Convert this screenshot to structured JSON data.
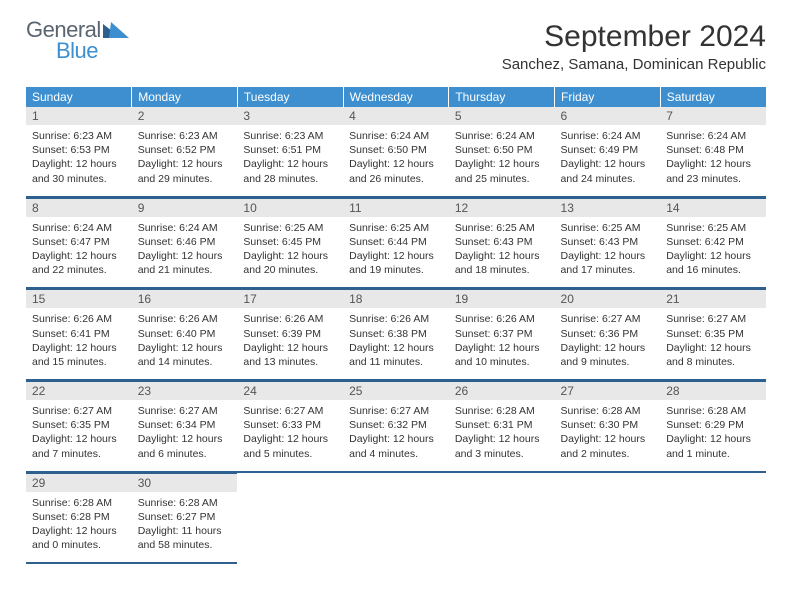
{
  "brand": {
    "general": "General",
    "blue": "Blue"
  },
  "title": "September 2024",
  "location": "Sanchez, Samana, Dominican Republic",
  "colors": {
    "header_bg": "#3d8fcf",
    "row_divider": "#2d5f8f",
    "daynum_bg": "#e8e8e8",
    "text": "#333333",
    "logo_gray": "#5a6570",
    "logo_blue": "#3d8fcf"
  },
  "weekdays": [
    "Sunday",
    "Monday",
    "Tuesday",
    "Wednesday",
    "Thursday",
    "Friday",
    "Saturday"
  ],
  "days": [
    {
      "n": 1,
      "sr": "6:23 AM",
      "ss": "6:53 PM",
      "dl": "12 hours and 30 minutes."
    },
    {
      "n": 2,
      "sr": "6:23 AM",
      "ss": "6:52 PM",
      "dl": "12 hours and 29 minutes."
    },
    {
      "n": 3,
      "sr": "6:23 AM",
      "ss": "6:51 PM",
      "dl": "12 hours and 28 minutes."
    },
    {
      "n": 4,
      "sr": "6:24 AM",
      "ss": "6:50 PM",
      "dl": "12 hours and 26 minutes."
    },
    {
      "n": 5,
      "sr": "6:24 AM",
      "ss": "6:50 PM",
      "dl": "12 hours and 25 minutes."
    },
    {
      "n": 6,
      "sr": "6:24 AM",
      "ss": "6:49 PM",
      "dl": "12 hours and 24 minutes."
    },
    {
      "n": 7,
      "sr": "6:24 AM",
      "ss": "6:48 PM",
      "dl": "12 hours and 23 minutes."
    },
    {
      "n": 8,
      "sr": "6:24 AM",
      "ss": "6:47 PM",
      "dl": "12 hours and 22 minutes."
    },
    {
      "n": 9,
      "sr": "6:24 AM",
      "ss": "6:46 PM",
      "dl": "12 hours and 21 minutes."
    },
    {
      "n": 10,
      "sr": "6:25 AM",
      "ss": "6:45 PM",
      "dl": "12 hours and 20 minutes."
    },
    {
      "n": 11,
      "sr": "6:25 AM",
      "ss": "6:44 PM",
      "dl": "12 hours and 19 minutes."
    },
    {
      "n": 12,
      "sr": "6:25 AM",
      "ss": "6:43 PM",
      "dl": "12 hours and 18 minutes."
    },
    {
      "n": 13,
      "sr": "6:25 AM",
      "ss": "6:43 PM",
      "dl": "12 hours and 17 minutes."
    },
    {
      "n": 14,
      "sr": "6:25 AM",
      "ss": "6:42 PM",
      "dl": "12 hours and 16 minutes."
    },
    {
      "n": 15,
      "sr": "6:26 AM",
      "ss": "6:41 PM",
      "dl": "12 hours and 15 minutes."
    },
    {
      "n": 16,
      "sr": "6:26 AM",
      "ss": "6:40 PM",
      "dl": "12 hours and 14 minutes."
    },
    {
      "n": 17,
      "sr": "6:26 AM",
      "ss": "6:39 PM",
      "dl": "12 hours and 13 minutes."
    },
    {
      "n": 18,
      "sr": "6:26 AM",
      "ss": "6:38 PM",
      "dl": "12 hours and 11 minutes."
    },
    {
      "n": 19,
      "sr": "6:26 AM",
      "ss": "6:37 PM",
      "dl": "12 hours and 10 minutes."
    },
    {
      "n": 20,
      "sr": "6:27 AM",
      "ss": "6:36 PM",
      "dl": "12 hours and 9 minutes."
    },
    {
      "n": 21,
      "sr": "6:27 AM",
      "ss": "6:35 PM",
      "dl": "12 hours and 8 minutes."
    },
    {
      "n": 22,
      "sr": "6:27 AM",
      "ss": "6:35 PM",
      "dl": "12 hours and 7 minutes."
    },
    {
      "n": 23,
      "sr": "6:27 AM",
      "ss": "6:34 PM",
      "dl": "12 hours and 6 minutes."
    },
    {
      "n": 24,
      "sr": "6:27 AM",
      "ss": "6:33 PM",
      "dl": "12 hours and 5 minutes."
    },
    {
      "n": 25,
      "sr": "6:27 AM",
      "ss": "6:32 PM",
      "dl": "12 hours and 4 minutes."
    },
    {
      "n": 26,
      "sr": "6:28 AM",
      "ss": "6:31 PM",
      "dl": "12 hours and 3 minutes."
    },
    {
      "n": 27,
      "sr": "6:28 AM",
      "ss": "6:30 PM",
      "dl": "12 hours and 2 minutes."
    },
    {
      "n": 28,
      "sr": "6:28 AM",
      "ss": "6:29 PM",
      "dl": "12 hours and 1 minute."
    },
    {
      "n": 29,
      "sr": "6:28 AM",
      "ss": "6:28 PM",
      "dl": "12 hours and 0 minutes."
    },
    {
      "n": 30,
      "sr": "6:28 AM",
      "ss": "6:27 PM",
      "dl": "11 hours and 58 minutes."
    }
  ],
  "labels": {
    "sunrise": "Sunrise:",
    "sunset": "Sunset:",
    "daylight": "Daylight:"
  },
  "start_weekday": 0
}
